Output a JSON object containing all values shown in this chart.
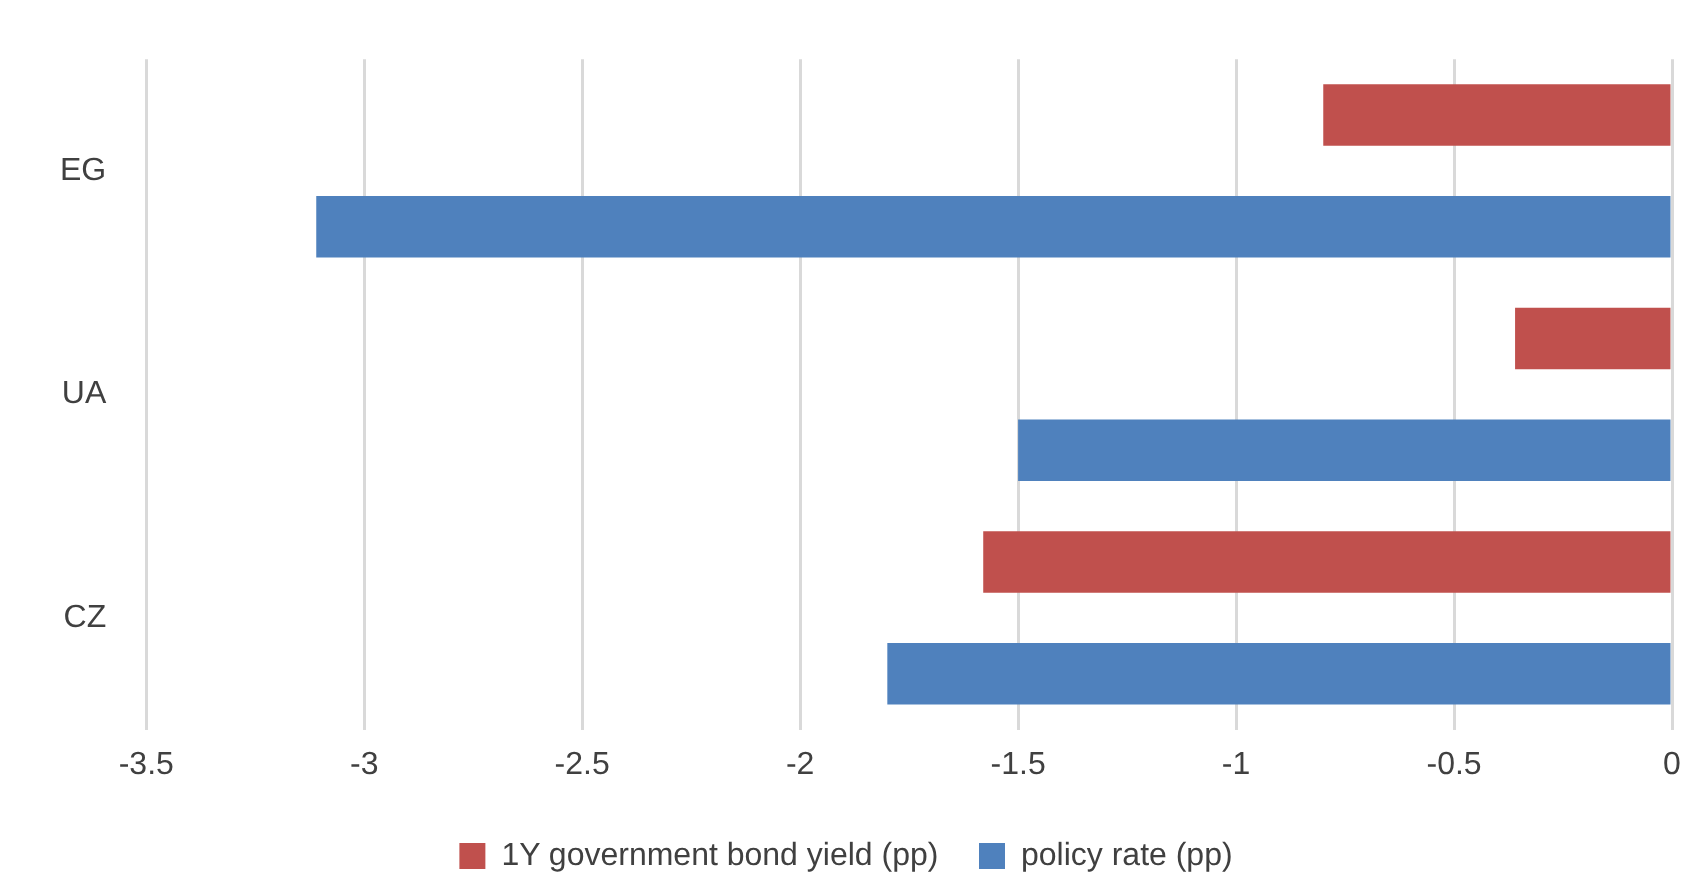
{
  "chart_data": {
    "type": "bar",
    "orientation": "horizontal",
    "categories": [
      "EG",
      "UA",
      "CZ"
    ],
    "series": [
      {
        "name": "1Y government bond yield (pp)",
        "color": "#c0504d",
        "values": [
          -0.8,
          -0.36,
          -1.58
        ]
      },
      {
        "name": "policy rate (pp)",
        "color": "#4f81bd",
        "values": [
          -3.11,
          -1.5,
          -1.8
        ]
      }
    ],
    "xlim": [
      -3.5,
      0
    ],
    "xticks": [
      -3.5,
      -3,
      -2.5,
      -2,
      -1.5,
      -1,
      -0.5,
      0
    ],
    "grid": "x",
    "legend": "bottom"
  }
}
